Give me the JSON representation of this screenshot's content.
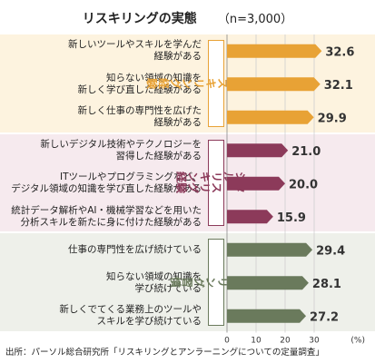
{
  "chart_data": {
    "type": "bar",
    "orientation": "horizontal",
    "title": "リスキリングの実態",
    "subtitle": "（n=3,000）",
    "unit": "(%)",
    "xlim": [
      0,
      35
    ],
    "ticks": [
      "0",
      "10",
      "20",
      "30"
    ],
    "categories": [
      "新しいツールやスキルを学んだ\n経験がある",
      "知らない領域の知識を\n新しく学び直した経験がある",
      "新しく仕事の専門性を広げた\n経験がある",
      "新しいデジタル技術やテクノロジーを\n習得した経験がある",
      "ITツールやプログラミングなど、\nデジタル領域の知識を学び直した経験がある",
      "統計データ解析やAI・機械学習などを用いた\n分析スキルを新たに身に付けた経験がある",
      "仕事の専門性を広げ続けている",
      "知らない領域の知識を\n学び続けている",
      "新しくでてくる業務上のツールや\nスキルを学び続けている"
    ],
    "values": [
      32.6,
      32.1,
      29.9,
      21.0,
      20.0,
      15.9,
      29.4,
      28.1,
      27.2
    ],
    "value_labels": [
      "32.6",
      "32.1",
      "29.9",
      "21.0",
      "20.0",
      "15.9",
      "29.4",
      "28.1",
      "27.2"
    ],
    "groups": [
      {
        "label": "一般的な\nリスキリング経験",
        "start": 0,
        "end": 2,
        "color": "#e8a235",
        "band": "#fdf3df"
      },
      {
        "label": "デジタル・\nリスキリング経験",
        "start": 3,
        "end": 5,
        "color": "#8c3a5a",
        "band": "#f6eaee"
      },
      {
        "label": "リスキリング習慣",
        "start": 6,
        "end": 8,
        "color": "#6a7a5c",
        "band": "#eef0ea"
      }
    ],
    "source": "出所：パーソル総合研究所「リスキリングとアンラーニングについての定量調査」"
  }
}
